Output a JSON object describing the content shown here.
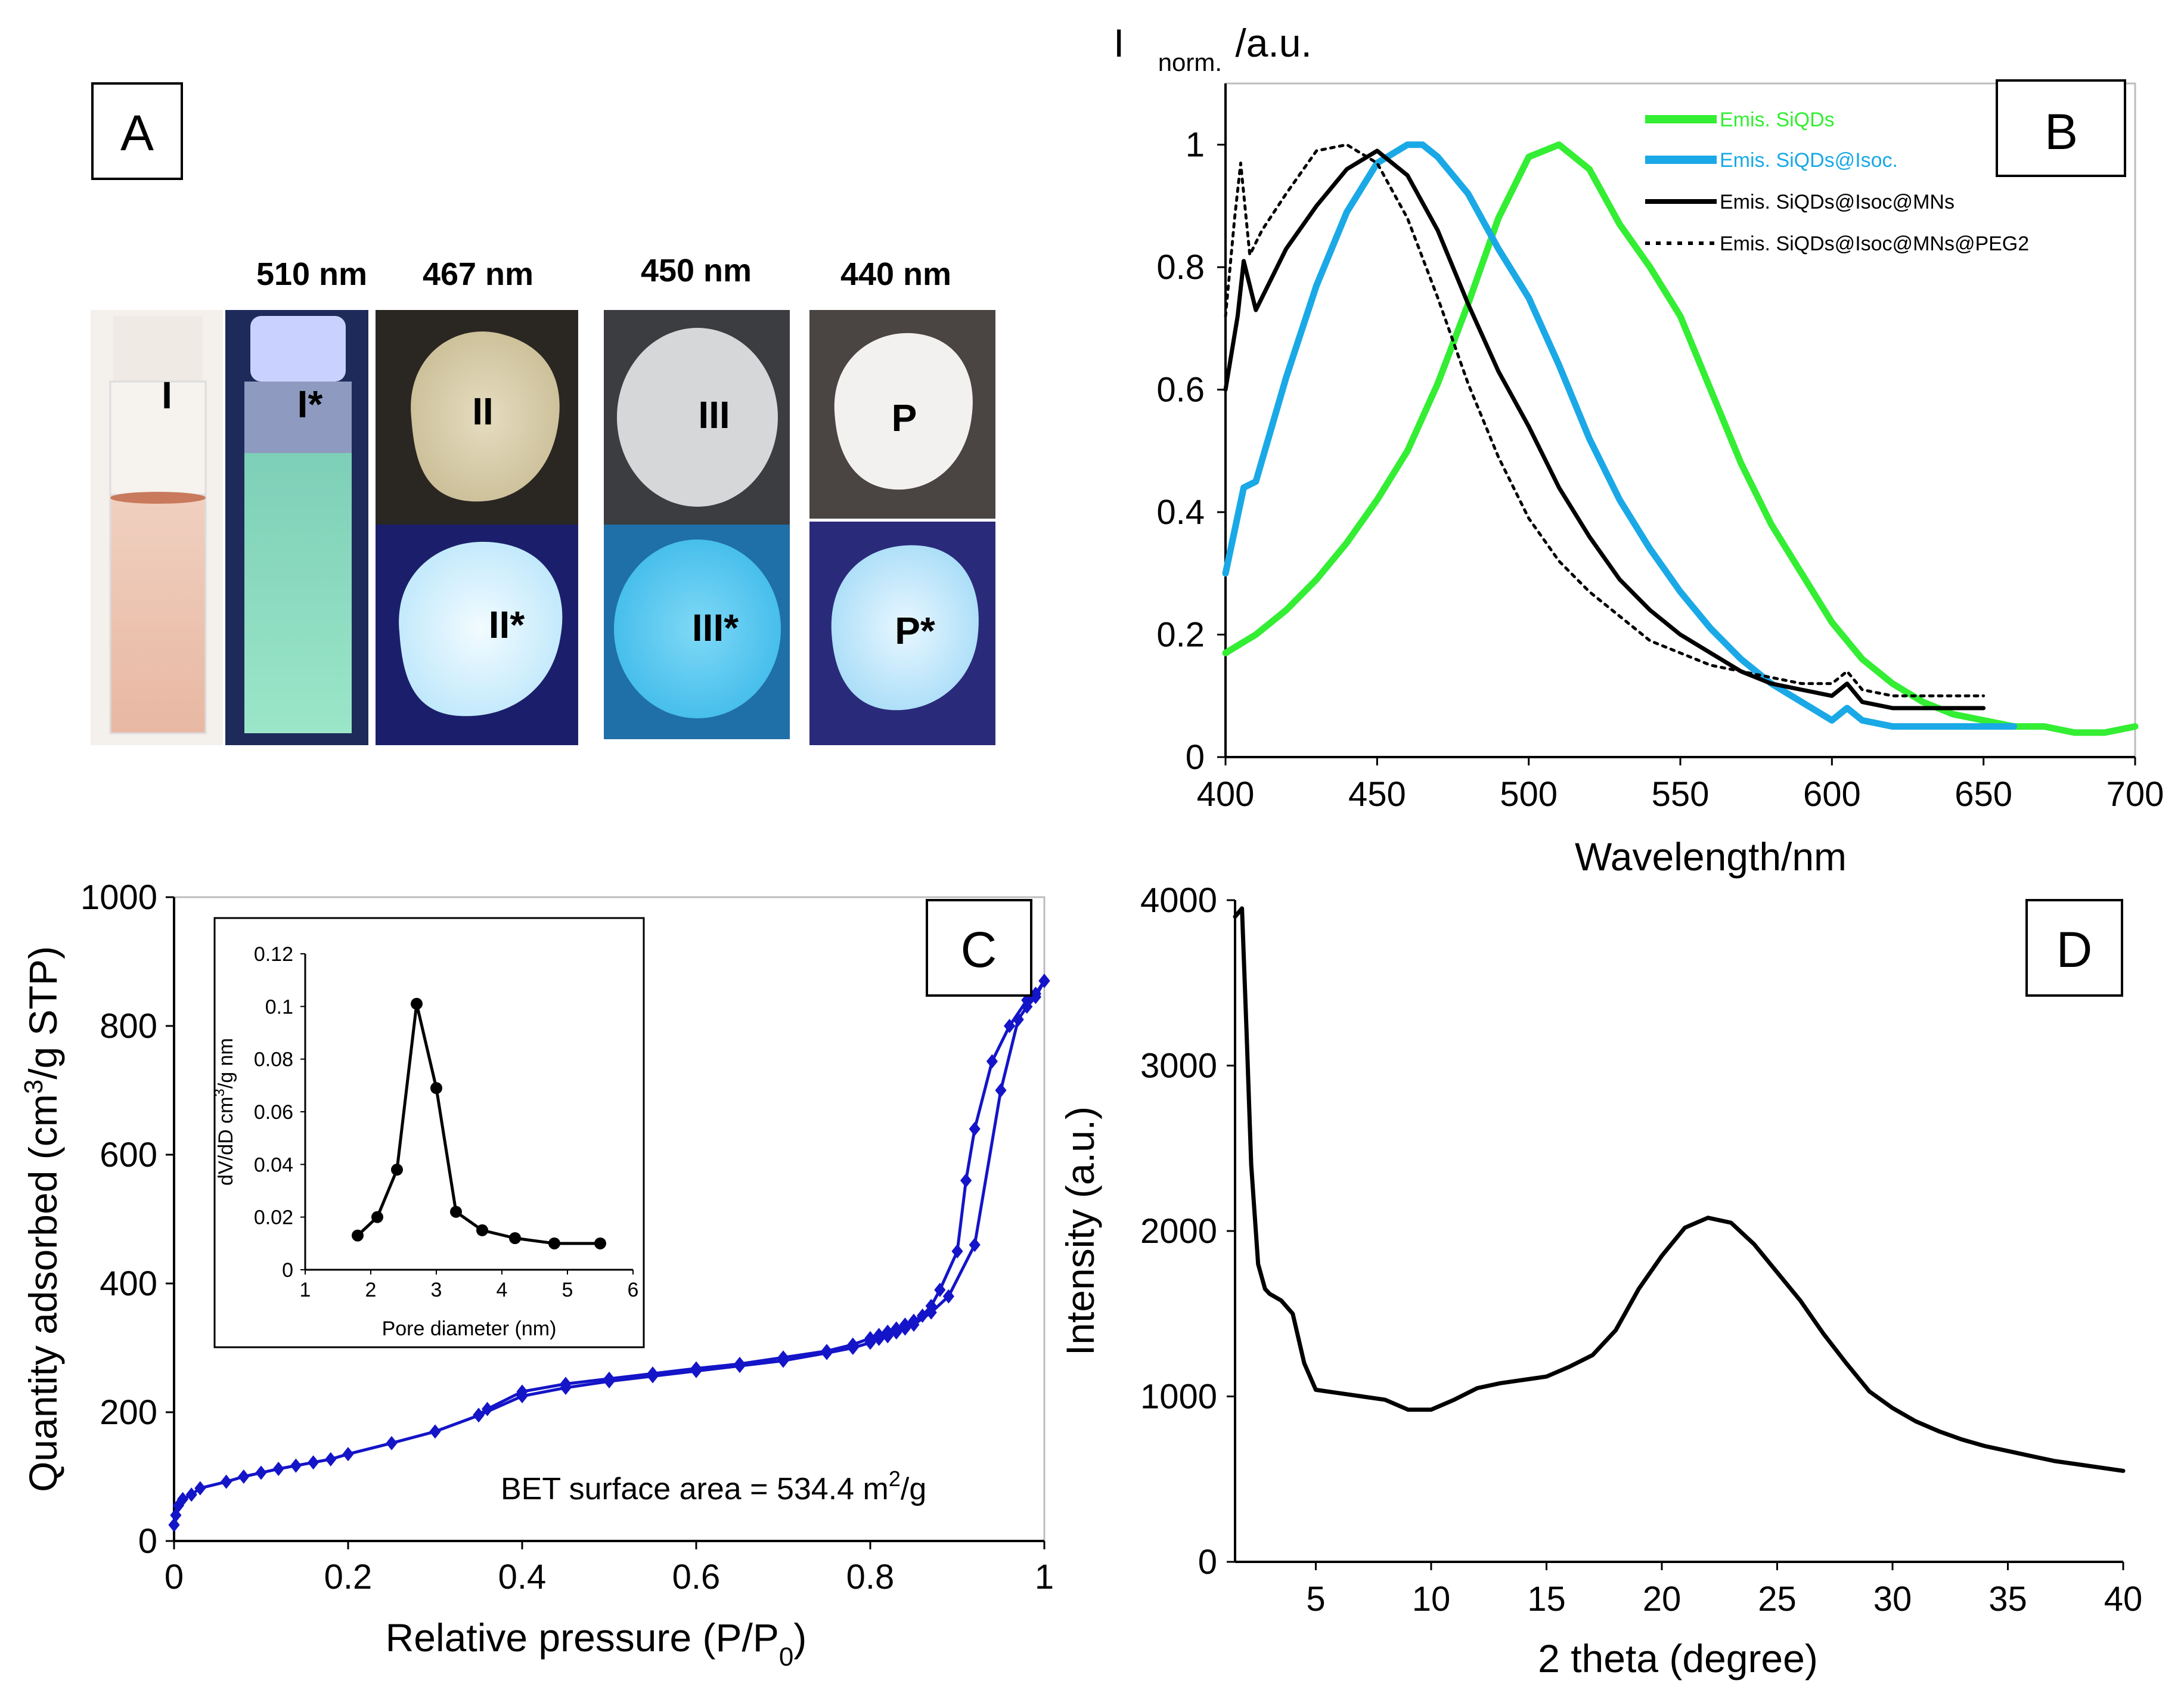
{
  "panels": {
    "a": {
      "letter": "A",
      "wavelengths": [
        "510 nm",
        "467 nm",
        "450 nm",
        "440 nm"
      ],
      "labels": [
        "I",
        "I*",
        "II",
        "II*",
        "III",
        "III*",
        "P",
        "P*"
      ]
    },
    "b": {
      "letter": "B"
    },
    "c": {
      "letter": "C"
    },
    "d": {
      "letter": "D"
    }
  },
  "colors": {
    "green": "#33ee33",
    "cyan": "#1aa9e6",
    "black": "#000000",
    "navy": "#1414c8"
  },
  "chart_data": [
    {
      "id": "b",
      "type": "line",
      "ylabel_main": "I",
      "ylabel_sub": "norm.",
      "ylabel_unit": "/a.u.",
      "xlabel": "Wavelength/nm",
      "xlim": [
        400,
        700
      ],
      "ylim": [
        0,
        1.1
      ],
      "xticks": [
        400,
        450,
        500,
        550,
        600,
        650,
        700
      ],
      "yticks": [
        0,
        0.2,
        0.4,
        0.6,
        0.8,
        1
      ],
      "ytick_labels": [
        "0",
        "0.2",
        "0.4",
        "0.6",
        "0.8",
        "1"
      ],
      "legend_position": "top-right",
      "series": [
        {
          "name": "Emis. SiQDs",
          "color": "#33ee33",
          "style": "solid",
          "x": [
            400,
            410,
            420,
            430,
            440,
            450,
            460,
            470,
            480,
            490,
            500,
            510,
            520,
            530,
            540,
            550,
            560,
            570,
            580,
            590,
            600,
            610,
            620,
            630,
            640,
            650,
            660,
            670,
            680,
            690,
            700
          ],
          "y": [
            0.17,
            0.2,
            0.24,
            0.29,
            0.35,
            0.42,
            0.5,
            0.61,
            0.74,
            0.88,
            0.98,
            1.0,
            0.96,
            0.87,
            0.8,
            0.72,
            0.6,
            0.48,
            0.38,
            0.3,
            0.22,
            0.16,
            0.12,
            0.09,
            0.07,
            0.06,
            0.05,
            0.05,
            0.04,
            0.04,
            0.05
          ]
        },
        {
          "name": "Emis. SiQDs@Isoc.",
          "color": "#1aa9e6",
          "style": "solid",
          "x": [
            400,
            403,
            406,
            410,
            420,
            430,
            440,
            450,
            460,
            465,
            470,
            480,
            490,
            500,
            510,
            520,
            530,
            540,
            550,
            560,
            570,
            580,
            590,
            600,
            605,
            610,
            620,
            630,
            640,
            650,
            660
          ],
          "y": [
            0.3,
            0.37,
            0.44,
            0.45,
            0.62,
            0.77,
            0.89,
            0.97,
            1.0,
            1.0,
            0.98,
            0.92,
            0.83,
            0.75,
            0.64,
            0.52,
            0.42,
            0.34,
            0.27,
            0.21,
            0.16,
            0.12,
            0.09,
            0.06,
            0.08,
            0.06,
            0.05,
            0.05,
            0.05,
            0.05,
            0.05
          ]
        },
        {
          "name": "Emis. SiQDs@Isoc@MNs",
          "color": "#000000",
          "style": "solid",
          "x": [
            400,
            404,
            406,
            410,
            420,
            430,
            440,
            450,
            460,
            470,
            480,
            490,
            500,
            510,
            520,
            530,
            540,
            550,
            560,
            570,
            580,
            590,
            600,
            605,
            610,
            620,
            630,
            640,
            650
          ],
          "y": [
            0.6,
            0.72,
            0.81,
            0.73,
            0.83,
            0.9,
            0.96,
            0.99,
            0.95,
            0.86,
            0.74,
            0.63,
            0.54,
            0.44,
            0.36,
            0.29,
            0.24,
            0.2,
            0.17,
            0.14,
            0.12,
            0.11,
            0.1,
            0.12,
            0.09,
            0.08,
            0.08,
            0.08,
            0.08
          ]
        },
        {
          "name": "Emis. SiQDs@Isoc@MNs@PEG2",
          "color": "#000000",
          "style": "dotted",
          "x": [
            400,
            403,
            405,
            408,
            412,
            420,
            430,
            440,
            450,
            460,
            470,
            480,
            490,
            500,
            510,
            520,
            530,
            540,
            550,
            560,
            570,
            580,
            590,
            600,
            605,
            610,
            620,
            630,
            640,
            650
          ],
          "y": [
            0.72,
            0.88,
            0.97,
            0.82,
            0.86,
            0.92,
            0.99,
            1.0,
            0.97,
            0.88,
            0.75,
            0.61,
            0.49,
            0.39,
            0.32,
            0.27,
            0.23,
            0.19,
            0.17,
            0.15,
            0.14,
            0.13,
            0.12,
            0.12,
            0.14,
            0.11,
            0.1,
            0.1,
            0.1,
            0.1
          ]
        }
      ]
    },
    {
      "id": "c",
      "type": "line",
      "ylabel_pre": "Quantity adsorbed (cm",
      "ylabel_sup": "3",
      "ylabel_post": "/g STP)",
      "xlabel_pre": "Relative pressure (P/P",
      "xlabel_sub": "0",
      "xlabel_post": ")",
      "xlim": [
        0,
        1
      ],
      "ylim": [
        0,
        1000
      ],
      "xticks": [
        0,
        0.2,
        0.4,
        0.6,
        0.8,
        1
      ],
      "yticks": [
        0,
        200,
        400,
        600,
        800,
        1000
      ],
      "annotation_pre": "BET surface area = 534.4 m",
      "annotation_sup": "2",
      "annotation_post": "/g",
      "series": [
        {
          "name": "",
          "color": "#1414c8",
          "marker": "diamond",
          "x": [
            0.0,
            0.002,
            0.005,
            0.01,
            0.02,
            0.03,
            0.06,
            0.08,
            0.1,
            0.12,
            0.14,
            0.16,
            0.18,
            0.2,
            0.25,
            0.3,
            0.35,
            0.4,
            0.45,
            0.5,
            0.55,
            0.6,
            0.65,
            0.7,
            0.75,
            0.78,
            0.8,
            0.81,
            0.82,
            0.83,
            0.84,
            0.85,
            0.87,
            0.89,
            0.92,
            0.95,
            0.97,
            0.98,
            0.99,
            1.0
          ],
          "y": [
            25,
            40,
            55,
            65,
            72,
            82,
            92,
            100,
            106,
            112,
            117,
            122,
            127,
            135,
            152,
            170,
            195,
            225,
            238,
            248,
            256,
            264,
            272,
            280,
            292,
            300,
            308,
            314,
            318,
            324,
            330,
            336,
            355,
            380,
            460,
            700,
            810,
            830,
            845,
            870
          ]
        },
        {
          "name": "",
          "color": "#1414c8",
          "marker": "diamond",
          "x": [
            1.0,
            0.99,
            0.98,
            0.96,
            0.94,
            0.92,
            0.91,
            0.9,
            0.88,
            0.87,
            0.86,
            0.85,
            0.84,
            0.83,
            0.82,
            0.81,
            0.8,
            0.78,
            0.75,
            0.7,
            0.65,
            0.6,
            0.55,
            0.5,
            0.45,
            0.4,
            0.36,
            0.35
          ],
          "y": [
            870,
            850,
            840,
            800,
            745,
            640,
            560,
            450,
            390,
            365,
            350,
            342,
            336,
            330,
            325,
            320,
            315,
            305,
            295,
            285,
            275,
            268,
            260,
            252,
            244,
            232,
            205,
            196
          ]
        }
      ],
      "inset": {
        "type": "line",
        "xlabel": "Pore diameter (nm)",
        "ylabel_pre": "dV/dD cm",
        "ylabel_sup": "3",
        "ylabel_post": "/g nm",
        "xlim": [
          1,
          6
        ],
        "ylim": [
          0,
          0.12
        ],
        "xticks": [
          1,
          2,
          3,
          4,
          5,
          6
        ],
        "yticks": [
          0,
          0.02,
          0.04,
          0.06,
          0.08,
          0.1,
          0.12
        ],
        "series": [
          {
            "name": "",
            "color": "#000000",
            "marker": "circle",
            "x": [
              1.8,
              2.1,
              2.4,
              2.7,
              3.0,
              3.3,
              3.7,
              4.2,
              4.8,
              5.5
            ],
            "y": [
              0.013,
              0.02,
              0.038,
              0.101,
              0.069,
              0.022,
              0.015,
              0.012,
              0.01,
              0.01
            ]
          }
        ]
      }
    },
    {
      "id": "d",
      "type": "line",
      "xlabel": "2 theta (degree)",
      "ylabel": "Intensity (a.u.)",
      "xlim": [
        1.5,
        40
      ],
      "ylim": [
        0,
        4000
      ],
      "xticks": [
        5,
        10,
        15,
        20,
        25,
        30,
        35,
        40
      ],
      "yticks": [
        0,
        1000,
        2000,
        3000,
        4000
      ],
      "series": [
        {
          "name": "",
          "color": "#000000",
          "x": [
            1.5,
            1.8,
            2.0,
            2.2,
            2.5,
            2.8,
            3.0,
            3.5,
            4.0,
            4.5,
            5.0,
            6,
            7,
            8,
            9,
            10,
            11,
            12,
            13,
            14,
            15,
            16,
            17,
            18,
            19,
            20,
            21,
            22,
            23,
            24,
            25,
            26,
            27,
            28,
            29,
            30,
            31,
            32,
            33,
            34,
            35,
            36,
            37,
            38,
            39,
            40
          ],
          "y": [
            3900,
            3950,
            3200,
            2400,
            1800,
            1650,
            1620,
            1580,
            1500,
            1200,
            1040,
            1020,
            1000,
            980,
            920,
            920,
            980,
            1050,
            1080,
            1100,
            1120,
            1180,
            1250,
            1400,
            1650,
            1850,
            2020,
            2080,
            2050,
            1920,
            1750,
            1580,
            1380,
            1200,
            1030,
            930,
            850,
            790,
            740,
            700,
            670,
            640,
            610,
            590,
            570,
            550
          ]
        }
      ]
    }
  ]
}
